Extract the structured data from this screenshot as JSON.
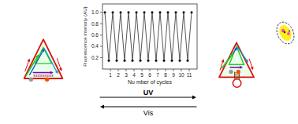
{
  "chart_data": {
    "type": "line",
    "xlabel": "Nu mber of cycles",
    "ylabel": "Fluorescence Intensity (AU)",
    "x": [
      0.3,
      0.8,
      1.3,
      1.8,
      2.3,
      2.8,
      3.3,
      3.8,
      4.3,
      4.8,
      5.3,
      5.8,
      6.3,
      6.8,
      7.3,
      7.8,
      8.3,
      8.8,
      9.3,
      9.8,
      10.3,
      10.8,
      11.3
    ],
    "values": [
      1.0,
      0.15,
      1.0,
      0.15,
      1.0,
      0.15,
      1.0,
      0.15,
      1.0,
      0.15,
      1.0,
      0.15,
      1.0,
      0.15,
      1.0,
      0.15,
      1.0,
      0.15,
      1.0,
      0.15,
      1.0,
      0.15,
      1.0
    ],
    "color": "#444444",
    "marker": "circle",
    "xlim": [
      0,
      12
    ],
    "ylim": [
      0.0,
      1.15
    ],
    "xticks": [
      1,
      2,
      3,
      4,
      5,
      6,
      7,
      8,
      9,
      10,
      11
    ],
    "yticks": [
      0.2,
      0.4,
      0.6,
      0.8,
      {
        "value": 1.0,
        "label": "1.0"
      }
    ],
    "annotations": [
      "UV",
      "Vis"
    ]
  }
}
